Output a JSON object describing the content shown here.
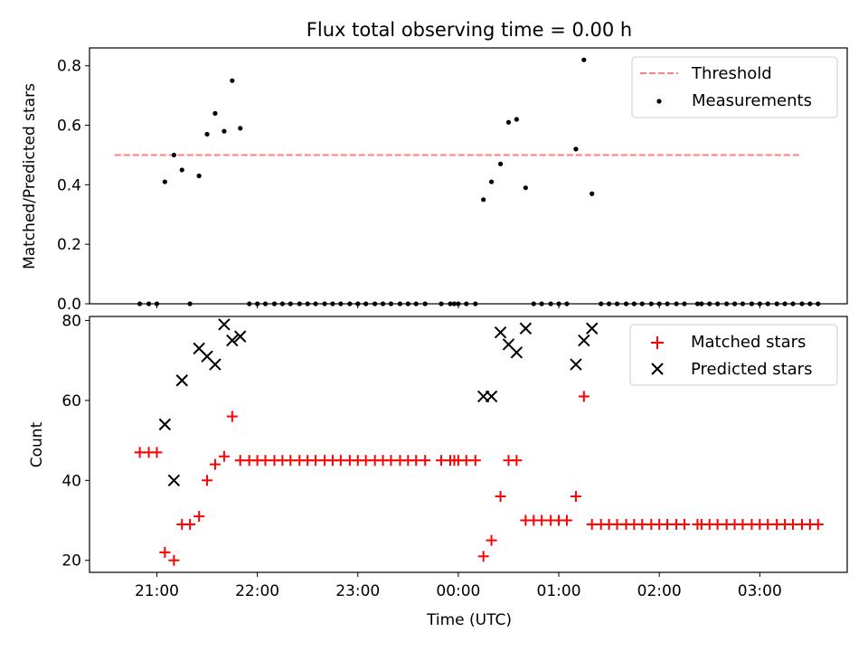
{
  "figure": {
    "title": "Flux total observing time = 0.00 h",
    "xlabel": "Time (UTC)",
    "xticks": [
      {
        "hour": 21,
        "label": "21:00"
      },
      {
        "hour": 22,
        "label": "22:00"
      },
      {
        "hour": 23,
        "label": "23:00"
      },
      {
        "hour": 24,
        "label": "00:00"
      },
      {
        "hour": 25,
        "label": "01:00"
      },
      {
        "hour": 26,
        "label": "02:00"
      },
      {
        "hour": 27,
        "label": "03:00"
      }
    ]
  },
  "chart_data": [
    {
      "type": "scatter",
      "ylabel": "Matched/Predicted stars",
      "xlim": [
        20.33,
        27.87
      ],
      "ylim": [
        0,
        0.86
      ],
      "yticks": [
        {
          "v": 0.0,
          "label": "0.0"
        },
        {
          "v": 0.2,
          "label": "0.2"
        },
        {
          "v": 0.4,
          "label": "0.4"
        },
        {
          "v": 0.6,
          "label": "0.6"
        },
        {
          "v": 0.8,
          "label": "0.8"
        }
      ],
      "legend_position": "top-right",
      "threshold": {
        "name": "Threshold",
        "value": 0.5,
        "x": [
          20.58,
          27.4
        ],
        "color": "#ff7f7f"
      },
      "series": [
        {
          "name": "Measurements",
          "color": "#000000",
          "points": [
            [
              20.83,
              0
            ],
            [
              20.92,
              0
            ],
            [
              21.0,
              0
            ],
            [
              21.08,
              0.41
            ],
            [
              21.17,
              0.5
            ],
            [
              21.25,
              0.45
            ],
            [
              21.33,
              0
            ],
            [
              21.42,
              0.43
            ],
            [
              21.5,
              0.57
            ],
            [
              21.58,
              0.64
            ],
            [
              21.67,
              0.58
            ],
            [
              21.75,
              0.75
            ],
            [
              21.83,
              0.59
            ],
            [
              21.92,
              0
            ],
            [
              22.0,
              0
            ],
            [
              22.08,
              0
            ],
            [
              22.17,
              0
            ],
            [
              22.25,
              0
            ],
            [
              22.33,
              0
            ],
            [
              22.42,
              0
            ],
            [
              22.5,
              0
            ],
            [
              22.58,
              0
            ],
            [
              22.67,
              0
            ],
            [
              22.75,
              0
            ],
            [
              22.83,
              0
            ],
            [
              22.92,
              0
            ],
            [
              23.0,
              0
            ],
            [
              23.08,
              0
            ],
            [
              23.17,
              0
            ],
            [
              23.25,
              0
            ],
            [
              23.33,
              0
            ],
            [
              23.42,
              0
            ],
            [
              23.5,
              0
            ],
            [
              23.58,
              0
            ],
            [
              23.67,
              0
            ],
            [
              23.83,
              0
            ],
            [
              23.92,
              0
            ],
            [
              23.96,
              0
            ],
            [
              24.0,
              0
            ],
            [
              24.08,
              0
            ],
            [
              24.17,
              0
            ],
            [
              24.25,
              0.35
            ],
            [
              24.33,
              0.41
            ],
            [
              24.42,
              0.47
            ],
            [
              24.5,
              0.61
            ],
            [
              24.58,
              0.62
            ],
            [
              24.67,
              0.39
            ],
            [
              24.75,
              0
            ],
            [
              24.83,
              0
            ],
            [
              24.92,
              0
            ],
            [
              25.0,
              0
            ],
            [
              25.08,
              0
            ],
            [
              25.17,
              0.52
            ],
            [
              25.25,
              0.82
            ],
            [
              25.33,
              0.37
            ],
            [
              25.42,
              0
            ],
            [
              25.5,
              0
            ],
            [
              25.58,
              0
            ],
            [
              25.67,
              0
            ],
            [
              25.75,
              0
            ],
            [
              25.83,
              0
            ],
            [
              25.92,
              0
            ],
            [
              26.0,
              0
            ],
            [
              26.08,
              0
            ],
            [
              26.17,
              0
            ],
            [
              26.25,
              0
            ],
            [
              26.38,
              0
            ],
            [
              26.42,
              0
            ],
            [
              26.5,
              0
            ],
            [
              26.58,
              0
            ],
            [
              26.67,
              0
            ],
            [
              26.75,
              0
            ],
            [
              26.83,
              0
            ],
            [
              26.92,
              0
            ],
            [
              27.0,
              0
            ],
            [
              27.08,
              0
            ],
            [
              27.17,
              0
            ],
            [
              27.25,
              0
            ],
            [
              27.33,
              0
            ],
            [
              27.42,
              0
            ],
            [
              27.5,
              0
            ],
            [
              27.58,
              0
            ]
          ]
        }
      ]
    },
    {
      "type": "scatter",
      "ylabel": "Count",
      "xlim": [
        20.33,
        27.87
      ],
      "ylim": [
        17,
        81
      ],
      "yticks": [
        {
          "v": 20,
          "label": "20"
        },
        {
          "v": 40,
          "label": "40"
        },
        {
          "v": 60,
          "label": "60"
        },
        {
          "v": 80,
          "label": "80"
        }
      ],
      "legend_position": "top-right",
      "series": [
        {
          "name": "Matched stars",
          "marker": "plus",
          "color": "#ff0000",
          "points": [
            [
              20.83,
              47
            ],
            [
              20.92,
              47
            ],
            [
              21.0,
              47
            ],
            [
              21.08,
              22
            ],
            [
              21.17,
              20
            ],
            [
              21.25,
              29
            ],
            [
              21.33,
              29
            ],
            [
              21.42,
              31
            ],
            [
              21.5,
              40
            ],
            [
              21.58,
              44
            ],
            [
              21.67,
              46
            ],
            [
              21.75,
              56
            ],
            [
              21.83,
              45
            ],
            [
              21.92,
              45
            ],
            [
              22.0,
              45
            ],
            [
              22.08,
              45
            ],
            [
              22.17,
              45
            ],
            [
              22.25,
              45
            ],
            [
              22.33,
              45
            ],
            [
              22.42,
              45
            ],
            [
              22.5,
              45
            ],
            [
              22.58,
              45
            ],
            [
              22.67,
              45
            ],
            [
              22.75,
              45
            ],
            [
              22.83,
              45
            ],
            [
              22.92,
              45
            ],
            [
              23.0,
              45
            ],
            [
              23.08,
              45
            ],
            [
              23.17,
              45
            ],
            [
              23.25,
              45
            ],
            [
              23.33,
              45
            ],
            [
              23.42,
              45
            ],
            [
              23.5,
              45
            ],
            [
              23.58,
              45
            ],
            [
              23.67,
              45
            ],
            [
              23.83,
              45
            ],
            [
              23.92,
              45
            ],
            [
              23.96,
              45
            ],
            [
              24.0,
              45
            ],
            [
              24.08,
              45
            ],
            [
              24.17,
              45
            ],
            [
              24.25,
              21
            ],
            [
              24.33,
              25
            ],
            [
              24.42,
              36
            ],
            [
              24.5,
              45
            ],
            [
              24.58,
              45
            ],
            [
              24.67,
              30
            ],
            [
              24.75,
              30
            ],
            [
              24.83,
              30
            ],
            [
              24.92,
              30
            ],
            [
              25.0,
              30
            ],
            [
              25.08,
              30
            ],
            [
              25.17,
              36
            ],
            [
              25.25,
              61
            ],
            [
              25.33,
              29
            ],
            [
              25.42,
              29
            ],
            [
              25.5,
              29
            ],
            [
              25.58,
              29
            ],
            [
              25.67,
              29
            ],
            [
              25.75,
              29
            ],
            [
              25.83,
              29
            ],
            [
              25.92,
              29
            ],
            [
              26.0,
              29
            ],
            [
              26.08,
              29
            ],
            [
              26.17,
              29
            ],
            [
              26.25,
              29
            ],
            [
              26.38,
              29
            ],
            [
              26.42,
              29
            ],
            [
              26.5,
              29
            ],
            [
              26.58,
              29
            ],
            [
              26.67,
              29
            ],
            [
              26.75,
              29
            ],
            [
              26.83,
              29
            ],
            [
              26.92,
              29
            ],
            [
              27.0,
              29
            ],
            [
              27.08,
              29
            ],
            [
              27.17,
              29
            ],
            [
              27.25,
              29
            ],
            [
              27.33,
              29
            ],
            [
              27.42,
              29
            ],
            [
              27.5,
              29
            ],
            [
              27.58,
              29
            ]
          ]
        },
        {
          "name": "Predicted stars",
          "marker": "x",
          "color": "#000000",
          "points": [
            [
              21.08,
              54
            ],
            [
              21.17,
              40
            ],
            [
              21.25,
              65
            ],
            [
              21.42,
              73
            ],
            [
              21.5,
              71
            ],
            [
              21.58,
              69
            ],
            [
              21.67,
              79
            ],
            [
              21.75,
              75
            ],
            [
              21.83,
              76
            ],
            [
              24.25,
              61
            ],
            [
              24.33,
              61
            ],
            [
              24.42,
              77
            ],
            [
              24.5,
              74
            ],
            [
              24.58,
              72
            ],
            [
              24.67,
              78
            ],
            [
              25.17,
              69
            ],
            [
              25.25,
              75
            ],
            [
              25.33,
              78
            ]
          ]
        }
      ]
    }
  ]
}
